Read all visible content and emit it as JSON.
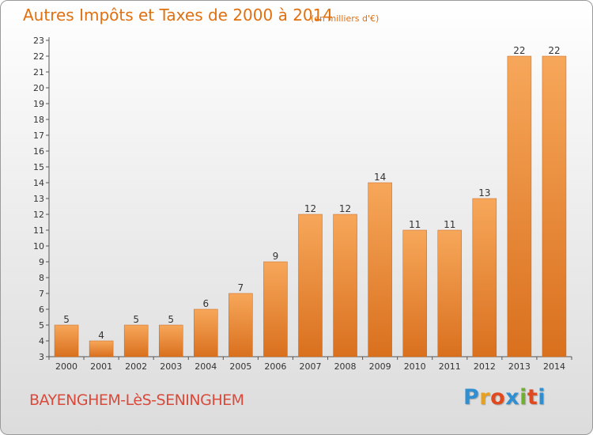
{
  "header": {
    "title": "Autres Impôts et Taxes de 2000 à 2014",
    "subtitle": "(en milliers d'€)"
  },
  "footer": {
    "commune": "BAYENGHEM-LèS-SENINGHEM",
    "logo_letters": [
      "P",
      "r",
      "o",
      "x",
      "i",
      "t",
      "i"
    ],
    "logo_colors": [
      "#2f8fd0",
      "#e8a020",
      "#e04a20",
      "#2f8fd0",
      "#70b030",
      "#e04a20",
      "#2f8fd0"
    ]
  },
  "colors": {
    "bar_light": "#f7a75a",
    "bar_dark": "#d9701e",
    "title": "#e07010",
    "commune": "#d94a3a"
  },
  "chart_data": {
    "type": "bar",
    "title": "Autres Impôts et Taxes de 2000 à 2014",
    "subtitle": "(en milliers d'€)",
    "categories": [
      "2000",
      "2001",
      "2002",
      "2003",
      "2004",
      "2005",
      "2006",
      "2007",
      "2008",
      "2009",
      "2010",
      "2011",
      "2012",
      "2013",
      "2014"
    ],
    "values": [
      5,
      4,
      5,
      5,
      6,
      7,
      9,
      12,
      12,
      14,
      11,
      11,
      13,
      22,
      22
    ],
    "ylim": [
      3,
      23
    ],
    "yticks": [
      3,
      4,
      5,
      6,
      7,
      8,
      9,
      10,
      11,
      12,
      13,
      14,
      15,
      16,
      17,
      18,
      19,
      20,
      21,
      22,
      23
    ],
    "grid": false,
    "data_labels": true
  }
}
